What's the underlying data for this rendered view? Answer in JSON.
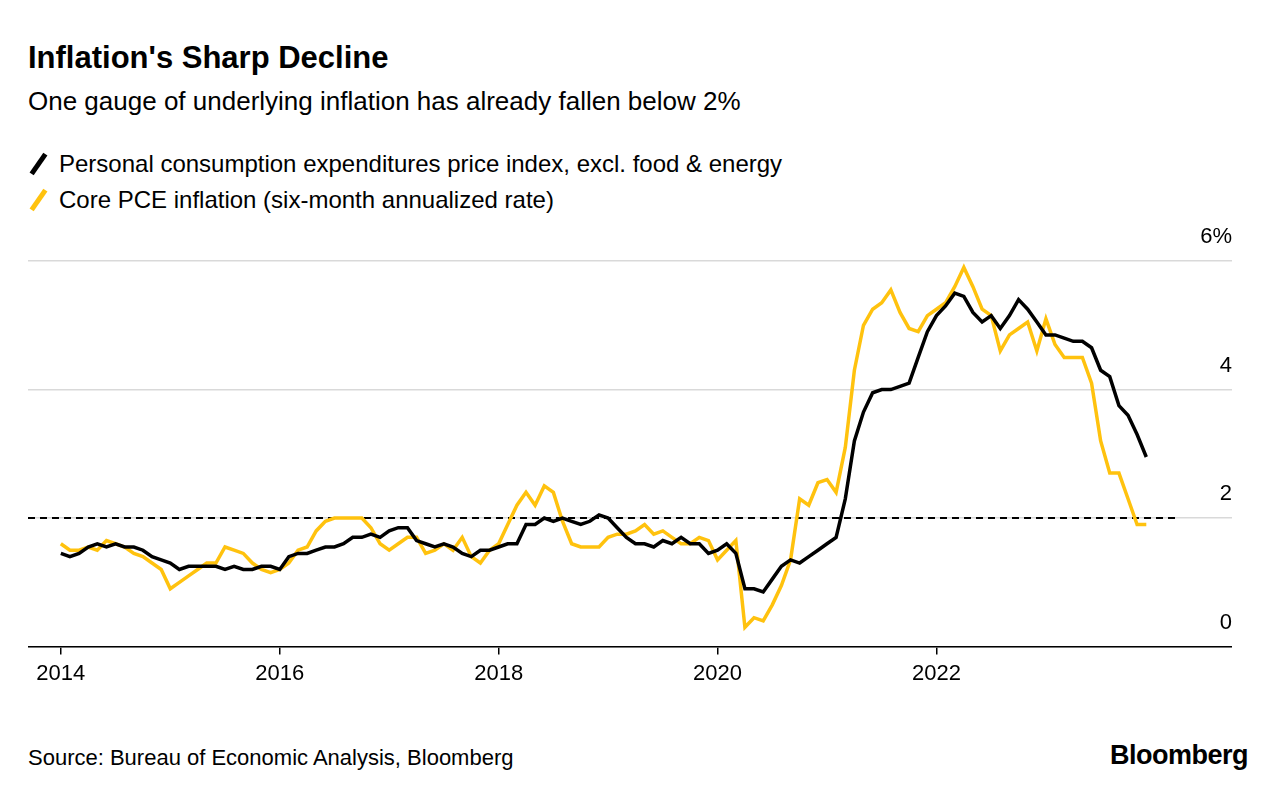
{
  "chart_data": {
    "type": "line",
    "title": "Inflation's Sharp Decline",
    "subtitle": "One gauge of underlying inflation has already fallen below 2%",
    "source": "Source: Bureau of Economic Analysis, Bloomberg",
    "logo": "Bloomberg",
    "legend": "top-left",
    "grid": true,
    "reference_line": 2,
    "xlim": [
      2013.7,
      2024.7
    ],
    "xticks": [
      2014,
      2016,
      2018,
      2020,
      2022
    ],
    "ylim": [
      0,
      6
    ],
    "yticks": [
      0,
      2,
      4,
      {
        "value": 6,
        "label": "6%"
      }
    ],
    "x": [
      2014,
      2014.083,
      2014.167,
      2014.25,
      2014.333,
      2014.417,
      2014.5,
      2014.583,
      2014.667,
      2014.75,
      2014.833,
      2014.917,
      2015,
      2015.083,
      2015.167,
      2015.25,
      2015.333,
      2015.417,
      2015.5,
      2015.583,
      2015.667,
      2015.75,
      2015.833,
      2015.917,
      2016,
      2016.083,
      2016.167,
      2016.25,
      2016.333,
      2016.417,
      2016.5,
      2016.583,
      2016.667,
      2016.75,
      2016.833,
      2016.917,
      2017,
      2017.083,
      2017.167,
      2017.25,
      2017.333,
      2017.417,
      2017.5,
      2017.583,
      2017.667,
      2017.75,
      2017.833,
      2017.917,
      2018,
      2018.083,
      2018.167,
      2018.25,
      2018.333,
      2018.417,
      2018.5,
      2018.583,
      2018.667,
      2018.75,
      2018.833,
      2018.917,
      2019,
      2019.083,
      2019.167,
      2019.25,
      2019.333,
      2019.417,
      2019.5,
      2019.583,
      2019.667,
      2019.75,
      2019.833,
      2019.917,
      2020,
      2020.083,
      2020.167,
      2020.25,
      2020.333,
      2020.417,
      2020.5,
      2020.583,
      2020.667,
      2020.75,
      2020.833,
      2020.917,
      2021,
      2021.083,
      2021.167,
      2021.25,
      2021.333,
      2021.417,
      2021.5,
      2021.583,
      2021.667,
      2021.75,
      2021.833,
      2021.917,
      2022,
      2022.083,
      2022.167,
      2022.25,
      2022.333,
      2022.417,
      2022.5,
      2022.583,
      2022.667,
      2022.75,
      2022.833,
      2022.917,
      2023,
      2023.083,
      2023.167,
      2023.25,
      2023.333,
      2023.417,
      2023.5,
      2023.583,
      2023.667,
      2023.75,
      2023.833,
      2023.917
    ],
    "series": [
      {
        "name": "Personal consumption expenditures price index, excl. food & energy",
        "color": "#000000",
        "values": [
          1.45,
          1.4,
          1.45,
          1.55,
          1.6,
          1.55,
          1.6,
          1.55,
          1.55,
          1.5,
          1.4,
          1.35,
          1.3,
          1.2,
          1.25,
          1.25,
          1.25,
          1.25,
          1.2,
          1.25,
          1.2,
          1.2,
          1.25,
          1.25,
          1.2,
          1.4,
          1.45,
          1.45,
          1.5,
          1.55,
          1.55,
          1.6,
          1.7,
          1.7,
          1.75,
          1.7,
          1.8,
          1.85,
          1.85,
          1.65,
          1.6,
          1.55,
          1.6,
          1.55,
          1.45,
          1.4,
          1.5,
          1.5,
          1.55,
          1.6,
          1.6,
          1.9,
          1.9,
          2.0,
          1.95,
          2.0,
          1.95,
          1.9,
          1.95,
          2.05,
          2.0,
          1.85,
          1.7,
          1.6,
          1.6,
          1.55,
          1.65,
          1.6,
          1.7,
          1.6,
          1.6,
          1.45,
          1.5,
          1.6,
          1.45,
          0.9,
          0.9,
          0.85,
          1.05,
          1.25,
          1.35,
          1.3,
          1.4,
          1.5,
          1.6,
          1.7,
          2.3,
          3.2,
          3.65,
          3.95,
          4.0,
          4.0,
          4.05,
          4.1,
          4.5,
          4.9,
          5.15,
          5.3,
          5.5,
          5.45,
          5.2,
          5.05,
          5.15,
          4.95,
          5.15,
          5.4,
          5.25,
          5.05,
          4.85,
          4.85,
          4.8,
          4.75,
          4.75,
          4.65,
          4.3,
          4.2,
          3.75,
          3.6,
          3.3,
          2.95
        ]
      },
      {
        "name": "Core PCE inflation (six-month annualized rate)",
        "color": "#ffc20e",
        "values": [
          1.6,
          1.5,
          1.5,
          1.55,
          1.5,
          1.65,
          1.6,
          1.55,
          1.45,
          1.4,
          1.3,
          1.2,
          0.9,
          1.0,
          1.1,
          1.2,
          1.3,
          1.3,
          1.55,
          1.5,
          1.45,
          1.3,
          1.2,
          1.15,
          1.2,
          1.3,
          1.5,
          1.55,
          1.8,
          1.95,
          2.0,
          2.0,
          2.0,
          2.0,
          1.85,
          1.6,
          1.5,
          1.6,
          1.7,
          1.7,
          1.45,
          1.5,
          1.6,
          1.5,
          1.7,
          1.4,
          1.3,
          1.5,
          1.6,
          1.9,
          2.2,
          2.4,
          2.2,
          2.5,
          2.4,
          1.95,
          1.6,
          1.55,
          1.55,
          1.55,
          1.7,
          1.75,
          1.75,
          1.8,
          1.9,
          1.75,
          1.8,
          1.7,
          1.6,
          1.6,
          1.7,
          1.65,
          1.35,
          1.5,
          1.65,
          0.3,
          0.45,
          0.4,
          0.65,
          0.95,
          1.35,
          2.3,
          2.2,
          2.55,
          2.6,
          2.4,
          3.1,
          4.3,
          5.0,
          5.25,
          5.35,
          5.55,
          5.2,
          4.95,
          4.9,
          5.15,
          5.25,
          5.35,
          5.6,
          5.9,
          5.6,
          5.25,
          5.15,
          4.6,
          4.85,
          4.95,
          5.05,
          4.6,
          5.1,
          4.7,
          4.5,
          4.5,
          4.5,
          4.1,
          3.2,
          2.7,
          2.7,
          2.3,
          1.9,
          1.9
        ]
      }
    ]
  }
}
